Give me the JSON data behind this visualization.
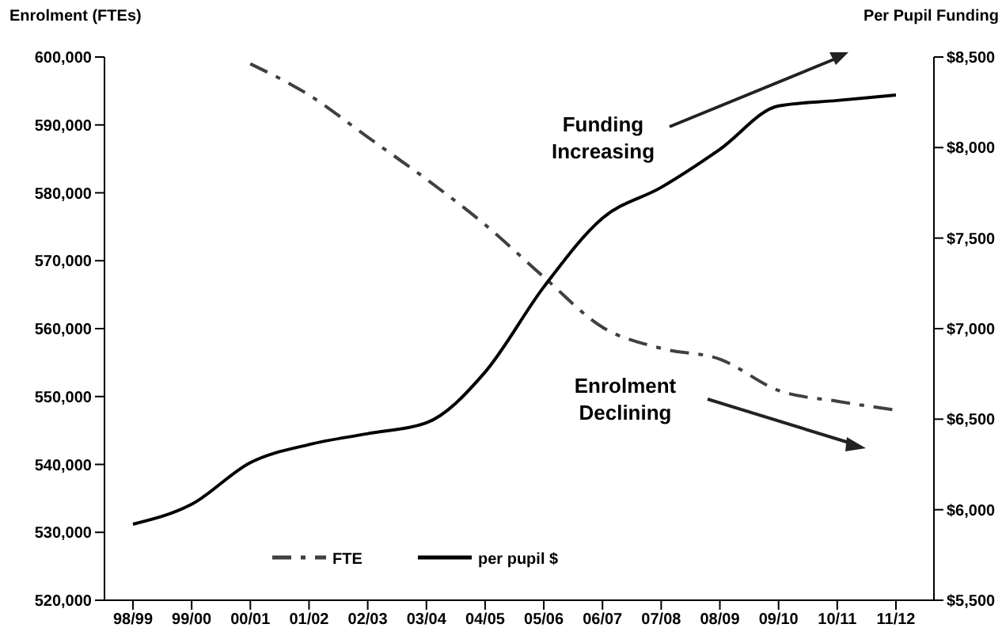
{
  "chart_data": {
    "type": "line",
    "ylabel": "Enrolment (FTEs)",
    "y2label": "Per Pupil Funding",
    "categories": [
      "98/99",
      "99/00",
      "00/01",
      "01/02",
      "02/03",
      "03/04",
      "04/05",
      "05/06",
      "06/07",
      "07/08",
      "08/09",
      "09/10",
      "10/11",
      "11/12"
    ],
    "series": [
      {
        "name": "FTE",
        "color": "#404040",
        "line_style": "dashed",
        "values": [
          null,
          null,
          599000,
          594400,
          588200,
          582000,
          575300,
          567600,
          560200,
          557100,
          555500,
          550900,
          549300,
          548000
        ]
      },
      {
        "name": "per pupil $",
        "color": "#000000",
        "line_style": "solid",
        "axis": "y2",
        "values": [
          5920,
          6030,
          6260,
          6360,
          6420,
          6480,
          6760,
          7230,
          7610,
          7780,
          7990,
          8230,
          8260,
          8290
        ]
      }
    ],
    "ylim": [
      520000,
      600000
    ],
    "yticks": [
      {
        "value": 520000,
        "label": "520,000"
      },
      {
        "value": 530000,
        "label": "530,000"
      },
      {
        "value": 540000,
        "label": "540,000"
      },
      {
        "value": 550000,
        "label": "550,000"
      },
      {
        "value": 560000,
        "label": "560,000"
      },
      {
        "value": 570000,
        "label": "570,000"
      },
      {
        "value": 580000,
        "label": "580,000"
      },
      {
        "value": 590000,
        "label": "590,000"
      },
      {
        "value": 600000,
        "label": "600,000"
      }
    ],
    "y2lim": [
      5500,
      8500
    ],
    "y2ticks": [
      {
        "value": 5500,
        "label": "$5,500"
      },
      {
        "value": 6000,
        "label": "$6,000"
      },
      {
        "value": 6500,
        "label": "$6,500"
      },
      {
        "value": 7000,
        "label": "$7,000"
      },
      {
        "value": 7500,
        "label": "$7,500"
      },
      {
        "value": 8000,
        "label": "$8,000"
      },
      {
        "value": 8500,
        "label": "$8,500"
      }
    ],
    "annotations": [
      "Funding Increasing",
      "Enrolment Declining"
    ],
    "legend": "bottom",
    "grid": false,
    "marker": "none"
  }
}
